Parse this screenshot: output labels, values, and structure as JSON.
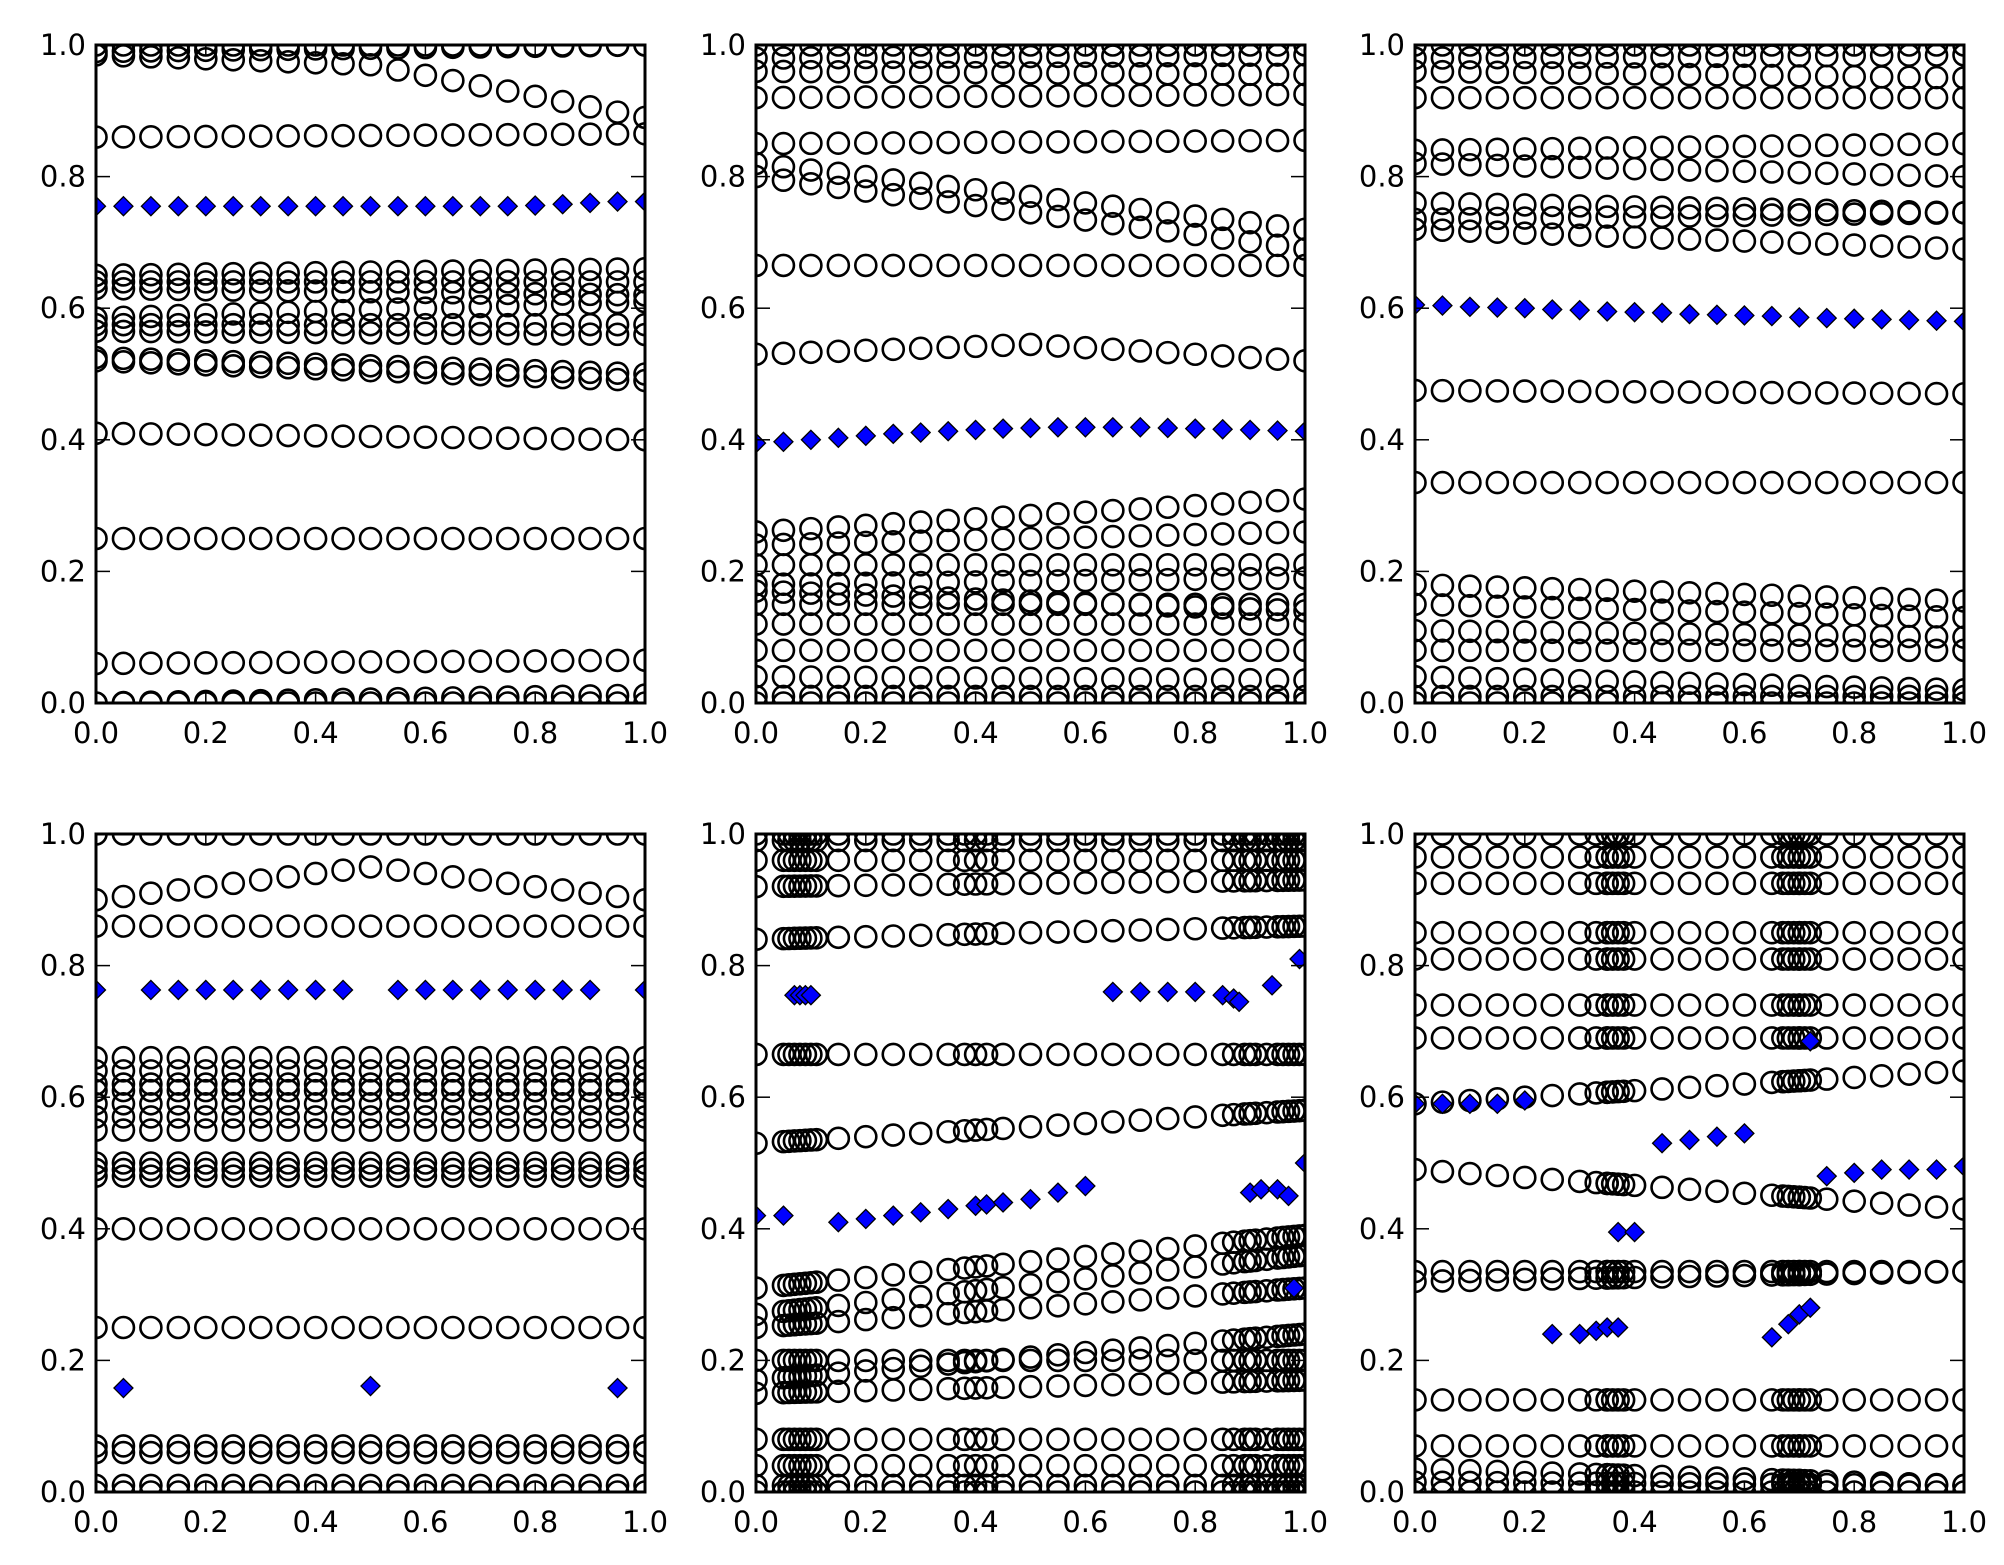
{
  "chart_data": {
    "type": "scatter",
    "layout": "2x3 grid of subplots",
    "shared_x_ticks": [
      "0.0",
      "0.2",
      "0.4",
      "0.6",
      "0.8",
      "1.0"
    ],
    "shared_y_ticks": [
      "0.0",
      "0.2",
      "0.4",
      "0.6",
      "0.8",
      "1.0"
    ],
    "xlim": [
      0,
      1
    ],
    "ylim": [
      0,
      1
    ],
    "x_step": 0.05,
    "colors": {
      "circle_edge": "#000000",
      "diamond_fill": "#0000ff",
      "diamond_edge": "#000000"
    },
    "panels": [
      {
        "name": "top-left",
        "circle_tracks": [
          [
            0.0,
            0.0
          ],
          [
            0.0,
            0.012
          ],
          [
            0.06,
            0.065
          ],
          [
            0.25,
            0.25
          ],
          [
            0.41,
            0.4
          ],
          [
            0.52,
            0.49
          ],
          [
            0.525,
            0.5
          ],
          [
            0.565,
            0.56
          ],
          [
            0.575,
            0.575
          ],
          [
            0.585,
            0.61
          ],
          [
            0.63,
            0.62
          ],
          [
            0.64,
            0.64
          ],
          [
            0.65,
            0.66
          ],
          [
            0.86,
            0.865
          ],
          [
            0.985,
            0.89,
            0.97
          ],
          [
            0.99,
            1.0
          ],
          [
            1.0,
            1.0
          ]
        ],
        "extra_x": [],
        "diamonds": [
          [
            0,
            0.755
          ],
          [
            0.05,
            0.755
          ],
          [
            0.1,
            0.755
          ],
          [
            0.15,
            0.755
          ],
          [
            0.2,
            0.755
          ],
          [
            0.25,
            0.755
          ],
          [
            0.3,
            0.755
          ],
          [
            0.35,
            0.755
          ],
          [
            0.4,
            0.755
          ],
          [
            0.45,
            0.755
          ],
          [
            0.5,
            0.755
          ],
          [
            0.55,
            0.755
          ],
          [
            0.6,
            0.755
          ],
          [
            0.65,
            0.755
          ],
          [
            0.7,
            0.755
          ],
          [
            0.75,
            0.755
          ],
          [
            0.8,
            0.756
          ],
          [
            0.85,
            0.758
          ],
          [
            0.9,
            0.76
          ],
          [
            0.95,
            0.762
          ],
          [
            1.0,
            0.762
          ]
        ]
      },
      {
        "name": "top-middle",
        "circle_tracks": [
          [
            0.0,
            0.0
          ],
          [
            0.01,
            0.01
          ],
          [
            0.04,
            0.035
          ],
          [
            0.08,
            0.08
          ],
          [
            0.12,
            0.12
          ],
          [
            0.15,
            0.15
          ],
          [
            0.17,
            0.14
          ],
          [
            0.18,
            0.19
          ],
          [
            0.21,
            0.21
          ],
          [
            0.24,
            0.26
          ],
          [
            0.26,
            0.31
          ],
          [
            0.53,
            0.52,
            0.545
          ],
          [
            0.665,
            0.665
          ],
          [
            0.8,
            0.69
          ],
          [
            0.82,
            0.72
          ],
          [
            0.85,
            0.855
          ],
          [
            0.92,
            0.925
          ],
          [
            0.96,
            0.955
          ],
          [
            0.98,
            0.985
          ],
          [
            1.0,
            1.0
          ]
        ],
        "extra_x": [],
        "diamonds": [
          [
            0,
            0.395
          ],
          [
            0.05,
            0.397
          ],
          [
            0.1,
            0.4
          ],
          [
            0.15,
            0.403
          ],
          [
            0.2,
            0.406
          ],
          [
            0.25,
            0.409
          ],
          [
            0.3,
            0.411
          ],
          [
            0.35,
            0.413
          ],
          [
            0.4,
            0.415
          ],
          [
            0.45,
            0.417
          ],
          [
            0.5,
            0.418
          ],
          [
            0.55,
            0.419
          ],
          [
            0.6,
            0.419
          ],
          [
            0.65,
            0.419
          ],
          [
            0.7,
            0.419
          ],
          [
            0.75,
            0.418
          ],
          [
            0.8,
            0.417
          ],
          [
            0.85,
            0.416
          ],
          [
            0.9,
            0.415
          ],
          [
            0.95,
            0.414
          ],
          [
            1.0,
            0.413
          ]
        ]
      },
      {
        "name": "top-right",
        "circle_tracks": [
          [
            0.0,
            0.0
          ],
          [
            0.01,
            0.01
          ],
          [
            0.04,
            0.02
          ],
          [
            0.08,
            0.08
          ],
          [
            0.11,
            0.1
          ],
          [
            0.15,
            0.13
          ],
          [
            0.18,
            0.155
          ],
          [
            0.335,
            0.335
          ],
          [
            0.475,
            0.47
          ],
          [
            0.72,
            0.69
          ],
          [
            0.735,
            0.745
          ],
          [
            0.76,
            0.745
          ],
          [
            0.82,
            0.8
          ],
          [
            0.84,
            0.85
          ],
          [
            0.92,
            0.92
          ],
          [
            0.96,
            0.95
          ],
          [
            0.98,
            0.985
          ],
          [
            1.0,
            1.0
          ]
        ],
        "extra_x": [],
        "diamonds": [
          [
            0,
            0.605
          ],
          [
            0.05,
            0.604
          ],
          [
            0.1,
            0.602
          ],
          [
            0.15,
            0.601
          ],
          [
            0.2,
            0.6
          ],
          [
            0.25,
            0.598
          ],
          [
            0.3,
            0.597
          ],
          [
            0.35,
            0.595
          ],
          [
            0.4,
            0.594
          ],
          [
            0.45,
            0.593
          ],
          [
            0.5,
            0.591
          ],
          [
            0.55,
            0.59
          ],
          [
            0.6,
            0.589
          ],
          [
            0.65,
            0.588
          ],
          [
            0.7,
            0.586
          ],
          [
            0.75,
            0.585
          ],
          [
            0.8,
            0.584
          ],
          [
            0.85,
            0.583
          ],
          [
            0.9,
            0.582
          ],
          [
            0.95,
            0.581
          ],
          [
            1.0,
            0.58
          ]
        ]
      },
      {
        "name": "bottom-left",
        "circle_tracks": [
          [
            0.0,
            0.0
          ],
          [
            0.01,
            0.01
          ],
          [
            0.06,
            0.06
          ],
          [
            0.07,
            0.07
          ],
          [
            0.25,
            0.25
          ],
          [
            0.4,
            0.4
          ],
          [
            0.48,
            0.48
          ],
          [
            0.49,
            0.49
          ],
          [
            0.5,
            0.5
          ],
          [
            0.55,
            0.55
          ],
          [
            0.57,
            0.57
          ],
          [
            0.59,
            0.59
          ],
          [
            0.61,
            0.61
          ],
          [
            0.62,
            0.62
          ],
          [
            0.64,
            0.64
          ],
          [
            0.66,
            0.66
          ],
          [
            0.86,
            0.86
          ],
          [
            0.9,
            0.9,
            0.95
          ],
          [
            1.0,
            1.0
          ]
        ],
        "extra_x": [],
        "diamonds": [
          [
            0,
            0.763
          ],
          [
            0.1,
            0.763
          ],
          [
            0.15,
            0.763
          ],
          [
            0.2,
            0.763
          ],
          [
            0.25,
            0.763
          ],
          [
            0.3,
            0.763
          ],
          [
            0.35,
            0.763
          ],
          [
            0.4,
            0.763
          ],
          [
            0.45,
            0.763
          ],
          [
            0.55,
            0.763
          ],
          [
            0.6,
            0.763
          ],
          [
            0.65,
            0.763
          ],
          [
            0.7,
            0.763
          ],
          [
            0.75,
            0.763
          ],
          [
            0.8,
            0.763
          ],
          [
            0.85,
            0.763
          ],
          [
            0.9,
            0.763
          ],
          [
            1.0,
            0.763
          ],
          [
            0.05,
            0.158
          ],
          [
            0.5,
            0.161
          ],
          [
            0.95,
            0.158
          ]
        ]
      },
      {
        "name": "bottom-middle",
        "circle_tracks": [
          [
            0.0,
            0.0
          ],
          [
            0.01,
            0.01
          ],
          [
            0.04,
            0.04
          ],
          [
            0.08,
            0.08
          ],
          [
            0.15,
            0.17
          ],
          [
            0.17,
            0.24
          ],
          [
            0.2,
            0.2
          ],
          [
            0.25,
            0.31
          ],
          [
            0.27,
            0.36
          ],
          [
            0.31,
            0.39
          ],
          [
            0.53,
            0.58
          ],
          [
            0.665,
            0.665
          ],
          [
            0.84,
            0.86
          ],
          [
            0.92,
            0.93
          ],
          [
            0.96,
            0.96
          ],
          [
            0.99,
            0.99
          ],
          [
            1.0,
            1.0
          ]
        ],
        "extra_x": [
          0.06,
          0.07,
          0.08,
          0.09,
          0.11,
          0.38,
          0.42,
          0.87,
          0.89,
          0.91,
          0.93,
          0.96,
          0.97,
          0.98,
          0.99
        ],
        "diamonds": [
          [
            0,
            0.42
          ],
          [
            0.05,
            0.42
          ],
          [
            0.07,
            0.755
          ],
          [
            0.08,
            0.755
          ],
          [
            0.09,
            0.755
          ],
          [
            0.1,
            0.755
          ],
          [
            0.15,
            0.41
          ],
          [
            0.2,
            0.415
          ],
          [
            0.25,
            0.42
          ],
          [
            0.3,
            0.425
          ],
          [
            0.35,
            0.43
          ],
          [
            0.4,
            0.435
          ],
          [
            0.42,
            0.437
          ],
          [
            0.45,
            0.44
          ],
          [
            0.5,
            0.445
          ],
          [
            0.55,
            0.455
          ],
          [
            0.6,
            0.465
          ],
          [
            0.65,
            0.76
          ],
          [
            0.7,
            0.76
          ],
          [
            0.75,
            0.76
          ],
          [
            0.8,
            0.76
          ],
          [
            0.85,
            0.755
          ],
          [
            0.87,
            0.75
          ],
          [
            0.88,
            0.745
          ],
          [
            0.9,
            0.455
          ],
          [
            0.92,
            0.46
          ],
          [
            0.95,
            0.46
          ],
          [
            0.94,
            0.77
          ],
          [
            0.97,
            0.45
          ],
          [
            0.99,
            0.81
          ],
          [
            1.0,
            0.5
          ],
          [
            0.98,
            0.31
          ]
        ]
      },
      {
        "name": "bottom-right",
        "circle_tracks": [
          [
            0.0,
            0.0
          ],
          [
            0.015,
            0.01
          ],
          [
            0.035,
            0.01
          ],
          [
            0.07,
            0.07
          ],
          [
            0.14,
            0.14
          ],
          [
            0.32,
            0.335
          ],
          [
            0.335,
            0.335
          ],
          [
            0.49,
            0.43
          ],
          [
            0.59,
            0.64
          ],
          [
            0.69,
            0.69
          ],
          [
            0.74,
            0.74
          ],
          [
            0.81,
            0.81
          ],
          [
            0.85,
            0.85
          ],
          [
            0.925,
            0.925
          ],
          [
            0.965,
            0.965
          ],
          [
            1.0,
            1.0
          ]
        ],
        "extra_x": [
          0.33,
          0.35,
          0.36,
          0.37,
          0.38,
          0.67,
          0.68,
          0.69,
          0.7,
          0.71,
          0.72
        ],
        "diamonds": [
          [
            0,
            0.59
          ],
          [
            0.05,
            0.59
          ],
          [
            0.1,
            0.59
          ],
          [
            0.15,
            0.59
          ],
          [
            0.2,
            0.595
          ],
          [
            0.25,
            0.24
          ],
          [
            0.3,
            0.24
          ],
          [
            0.33,
            0.245
          ],
          [
            0.35,
            0.25
          ],
          [
            0.37,
            0.25
          ],
          [
            0.37,
            0.395
          ],
          [
            0.4,
            0.395
          ],
          [
            0.45,
            0.53
          ],
          [
            0.5,
            0.535
          ],
          [
            0.55,
            0.54
          ],
          [
            0.6,
            0.545
          ],
          [
            0.65,
            0.235
          ],
          [
            0.68,
            0.255
          ],
          [
            0.7,
            0.27
          ],
          [
            0.72,
            0.28
          ],
          [
            0.72,
            0.685
          ],
          [
            0.75,
            0.48
          ],
          [
            0.8,
            0.485
          ],
          [
            0.85,
            0.49
          ],
          [
            0.9,
            0.49
          ],
          [
            0.95,
            0.49
          ],
          [
            1.0,
            0.495
          ]
        ]
      }
    ]
  }
}
